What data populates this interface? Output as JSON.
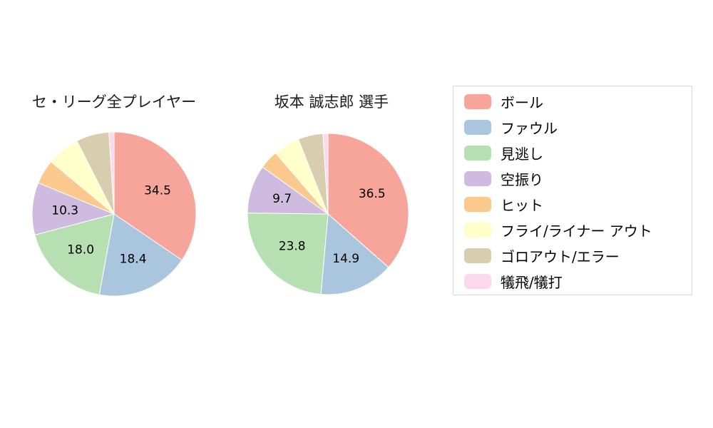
{
  "chart_data": [
    {
      "type": "pie",
      "title": "セ・リーグ全プレイヤー",
      "categories": [
        "ボール",
        "ファウル",
        "見逃し",
        "空振り",
        "ヒット",
        "フライ/ライナー アウト",
        "ゴロアウト/エラー",
        "犠飛/犠打"
      ],
      "values": [
        34.5,
        18.4,
        18.0,
        10.3,
        4.8,
        6.5,
        6.5,
        1.0
      ],
      "labels_shown": [
        true,
        true,
        true,
        true,
        false,
        false,
        false,
        false
      ],
      "value_labels": [
        "34.5",
        "18.4",
        "18.0",
        "10.3",
        "",
        "",
        "",
        ""
      ],
      "start_angle": "12-oclock",
      "direction": "clockwise",
      "legend_position": "right"
    },
    {
      "type": "pie",
      "title": "坂本 誠志郎 選手",
      "categories": [
        "ボール",
        "ファウル",
        "見逃し",
        "空振り",
        "ヒット",
        "フライ/ライナー アウト",
        "ゴロアウト/エラー",
        "犠飛/犠打"
      ],
      "values": [
        36.5,
        14.9,
        23.8,
        9.7,
        3.8,
        5.3,
        5.0,
        1.0
      ],
      "labels_shown": [
        true,
        true,
        true,
        true,
        false,
        false,
        false,
        false
      ],
      "value_labels": [
        "36.5",
        "14.9",
        "23.8",
        "9.7",
        "",
        "",
        "",
        ""
      ],
      "start_angle": "12-oclock",
      "direction": "clockwise",
      "legend_position": "right"
    }
  ],
  "legend": {
    "border_color": "#d9d9d9",
    "items": [
      {
        "key": "ball",
        "label": "ボール",
        "color": "#f7a49b"
      },
      {
        "key": "foul",
        "label": "ファウル",
        "color": "#a9c6de"
      },
      {
        "key": "called-strike",
        "label": "見逃し",
        "color": "#b6e0b1"
      },
      {
        "key": "swinging-strike",
        "label": "空振り",
        "color": "#cfbbdf"
      },
      {
        "key": "hit",
        "label": "ヒット",
        "color": "#fbc98e"
      },
      {
        "key": "fly-liner-out",
        "label": "フライ/ライナー アウト",
        "color": "#feffc9"
      },
      {
        "key": "ground-out-error",
        "label": "ゴロアウト/エラー",
        "color": "#d8cdae"
      },
      {
        "key": "sacrifice",
        "label": "犠飛/犠打",
        "color": "#fcd9ec"
      }
    ]
  }
}
